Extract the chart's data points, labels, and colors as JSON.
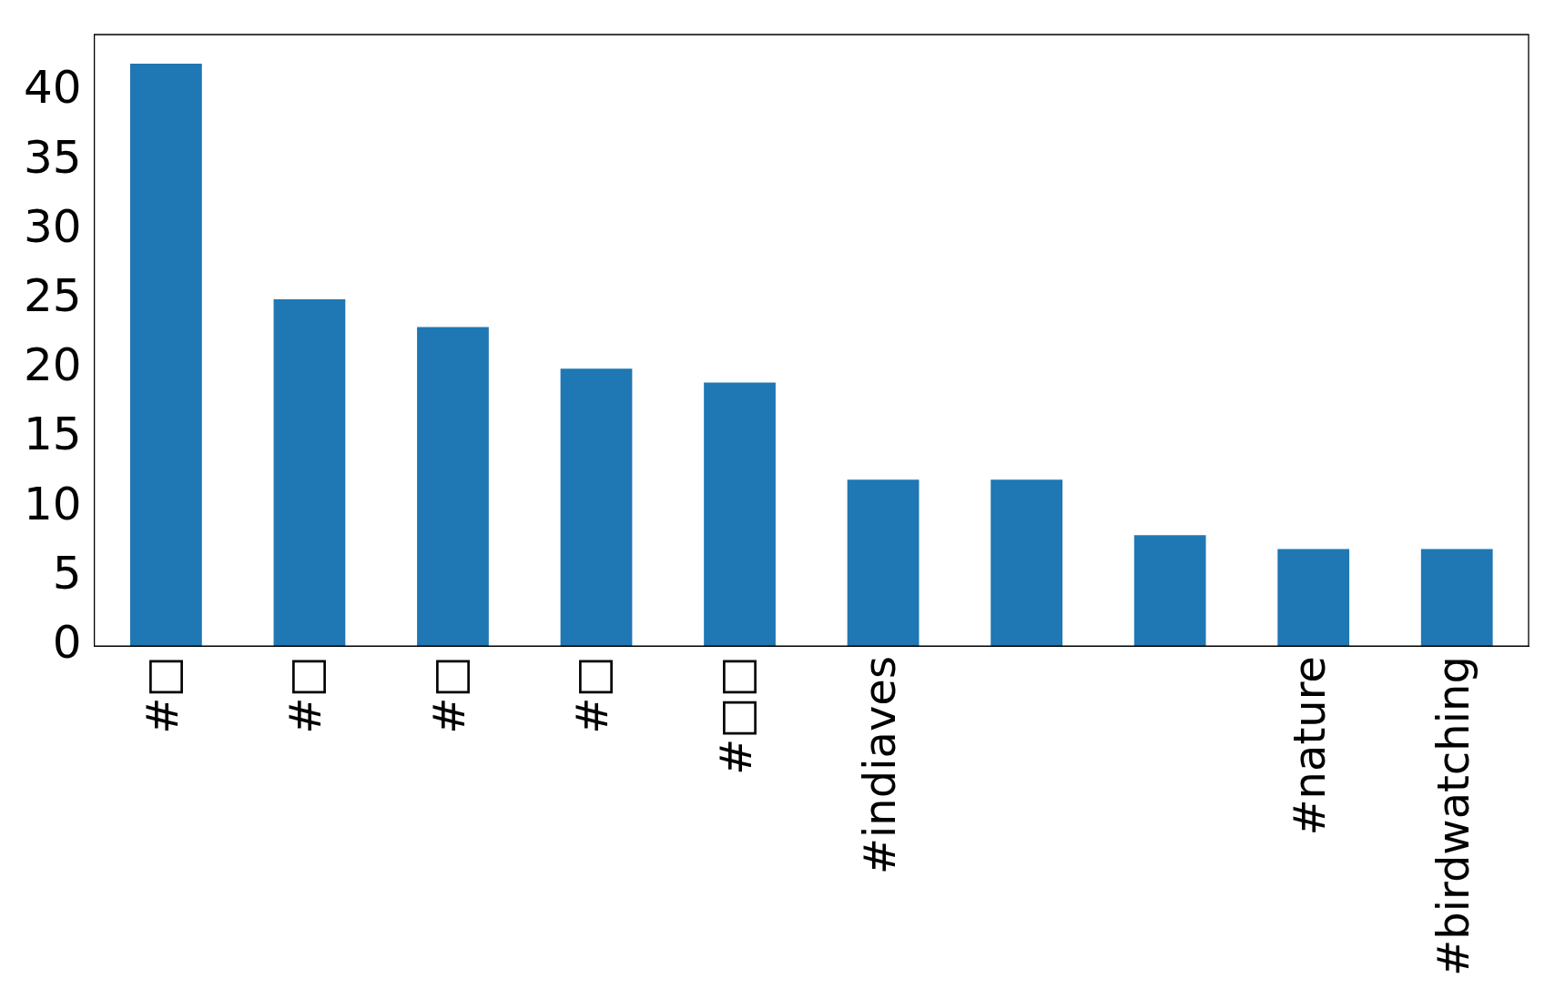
{
  "chart_data": {
    "type": "bar",
    "categories": [
      "#□",
      "#□",
      "#□",
      "#□",
      "#□□",
      "#indiaves",
      null,
      null,
      "#nature",
      "#birdwatching"
    ],
    "values": [
      42,
      25,
      23,
      20,
      19,
      12,
      12,
      8,
      7,
      7
    ],
    "color": "#1f77b4",
    "ylim": [
      0,
      44.1
    ],
    "yticks": [
      0,
      5,
      10,
      15,
      20,
      25,
      30,
      35,
      40
    ],
    "grid": false,
    "legend": false
  }
}
